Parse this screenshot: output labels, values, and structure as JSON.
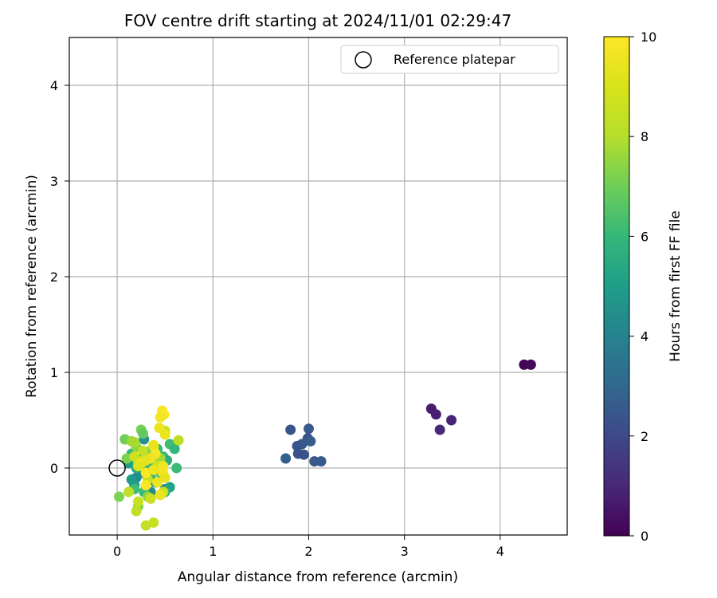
{
  "chart_data": {
    "type": "scatter",
    "title": "FOV centre drift starting at 2024/11/01 02:29:47",
    "xlabel": "Angular distance from reference (arcmin)",
    "ylabel": "Rotation from reference (arcmin)",
    "xlim": [
      -0.5,
      4.7
    ],
    "ylim": [
      -0.7,
      4.5
    ],
    "xticks": [
      0,
      1,
      2,
      3,
      4
    ],
    "yticks": [
      0,
      1,
      2,
      3,
      4
    ],
    "grid": true,
    "legend": {
      "placement": "top-right",
      "entries": [
        {
          "label": "Reference platepar",
          "marker": "open-circle",
          "x": 0,
          "y": 0
        }
      ]
    },
    "colorbar": {
      "label": "Hours from first FF file",
      "range": [
        0,
        10
      ],
      "ticks": [
        0,
        2,
        4,
        6,
        8,
        10
      ],
      "colormap": "viridis"
    },
    "points": [
      {
        "x": 4.25,
        "y": 1.08,
        "h": 0.1
      },
      {
        "x": 4.32,
        "y": 1.08,
        "h": 0.2
      },
      {
        "x": 3.28,
        "y": 0.62,
        "h": 0.7
      },
      {
        "x": 3.33,
        "y": 0.56,
        "h": 0.8
      },
      {
        "x": 3.49,
        "y": 0.5,
        "h": 0.9
      },
      {
        "x": 3.37,
        "y": 0.4,
        "h": 1.0
      },
      {
        "x": 1.81,
        "y": 0.4,
        "h": 2.4
      },
      {
        "x": 2.0,
        "y": 0.41,
        "h": 2.5
      },
      {
        "x": 1.99,
        "y": 0.31,
        "h": 2.3
      },
      {
        "x": 2.02,
        "y": 0.28,
        "h": 2.6
      },
      {
        "x": 1.93,
        "y": 0.25,
        "h": 2.5
      },
      {
        "x": 1.88,
        "y": 0.23,
        "h": 2.4
      },
      {
        "x": 1.89,
        "y": 0.15,
        "h": 2.2
      },
      {
        "x": 1.95,
        "y": 0.14,
        "h": 2.3
      },
      {
        "x": 1.76,
        "y": 0.1,
        "h": 2.7
      },
      {
        "x": 2.06,
        "y": 0.07,
        "h": 2.5
      },
      {
        "x": 2.13,
        "y": 0.07,
        "h": 2.6
      },
      {
        "x": 0.2,
        "y": -0.1,
        "h": 4.2
      },
      {
        "x": 0.25,
        "y": -0.05,
        "h": 4.4
      },
      {
        "x": 0.3,
        "y": -0.2,
        "h": 4.5
      },
      {
        "x": 0.35,
        "y": -0.25,
        "h": 4.3
      },
      {
        "x": 0.4,
        "y": -0.15,
        "h": 4.6
      },
      {
        "x": 0.45,
        "y": -0.28,
        "h": 4.8
      },
      {
        "x": 0.5,
        "y": -0.22,
        "h": 4.4
      },
      {
        "x": 0.15,
        "y": -0.12,
        "h": 4.9
      },
      {
        "x": 0.18,
        "y": -0.18,
        "h": 5.0
      },
      {
        "x": 0.28,
        "y": 0.3,
        "h": 4.6
      },
      {
        "x": 0.32,
        "y": 0.0,
        "h": 4.7
      },
      {
        "x": 0.55,
        "y": -0.2,
        "h": 5.2
      },
      {
        "x": 0.12,
        "y": 0.05,
        "h": 5.0
      },
      {
        "x": 0.38,
        "y": 0.15,
        "h": 5.1
      },
      {
        "x": 0.2,
        "y": 0.0,
        "h": 5.5
      },
      {
        "x": 0.25,
        "y": 0.1,
        "h": 5.7
      },
      {
        "x": 0.3,
        "y": 0.05,
        "h": 5.9
      },
      {
        "x": 0.35,
        "y": -0.1,
        "h": 5.8
      },
      {
        "x": 0.42,
        "y": 0.2,
        "h": 6.0
      },
      {
        "x": 0.48,
        "y": 0.12,
        "h": 6.1
      },
      {
        "x": 0.52,
        "y": 0.08,
        "h": 5.6
      },
      {
        "x": 0.55,
        "y": 0.25,
        "h": 6.2
      },
      {
        "x": 0.6,
        "y": 0.2,
        "h": 5.9
      },
      {
        "x": 0.62,
        "y": 0.0,
        "h": 6.1
      },
      {
        "x": 0.45,
        "y": -0.05,
        "h": 6.3
      },
      {
        "x": 0.15,
        "y": 0.15,
        "h": 6.0
      },
      {
        "x": 0.18,
        "y": -0.22,
        "h": 6.2
      },
      {
        "x": 0.28,
        "y": -0.25,
        "h": 6.1
      },
      {
        "x": 0.5,
        "y": -0.25,
        "h": 5.8
      },
      {
        "x": 0.4,
        "y": 0.05,
        "h": 6.4
      },
      {
        "x": 0.08,
        "y": 0.3,
        "h": 7.0
      },
      {
        "x": 0.25,
        "y": 0.4,
        "h": 7.1
      },
      {
        "x": 0.27,
        "y": 0.36,
        "h": 6.8
      },
      {
        "x": 0.02,
        "y": -0.3,
        "h": 7.2
      },
      {
        "x": 0.22,
        "y": -0.4,
        "h": 7.3
      },
      {
        "x": 0.2,
        "y": 0.22,
        "h": 7.4
      },
      {
        "x": 0.35,
        "y": 0.18,
        "h": 7.0
      },
      {
        "x": 0.1,
        "y": 0.1,
        "h": 7.2
      },
      {
        "x": 0.3,
        "y": 0.12,
        "h": 7.5
      },
      {
        "x": 0.22,
        "y": 0.05,
        "h": 7.6
      },
      {
        "x": 0.4,
        "y": -0.02,
        "h": 7.4
      },
      {
        "x": 0.32,
        "y": -0.3,
        "h": 7.5
      },
      {
        "x": 0.15,
        "y": 0.28,
        "h": 7.6
      },
      {
        "x": 0.18,
        "y": 0.27,
        "h": 7.8
      },
      {
        "x": 0.45,
        "y": 0.1,
        "h": 7.7
      },
      {
        "x": 0.2,
        "y": -0.45,
        "h": 8.3
      },
      {
        "x": 0.3,
        "y": -0.6,
        "h": 8.4
      },
      {
        "x": 0.38,
        "y": -0.57,
        "h": 8.5
      },
      {
        "x": 0.64,
        "y": 0.29,
        "h": 8.2
      },
      {
        "x": 0.5,
        "y": 0.39,
        "h": 8.6
      },
      {
        "x": 0.27,
        "y": 0.18,
        "h": 8.4
      },
      {
        "x": 0.22,
        "y": -0.35,
        "h": 8.5
      },
      {
        "x": 0.12,
        "y": -0.25,
        "h": 8.3
      },
      {
        "x": 0.35,
        "y": -0.32,
        "h": 8.7
      },
      {
        "x": 0.42,
        "y": 0.02,
        "h": 8.6
      },
      {
        "x": 0.25,
        "y": 0.07,
        "h": 8.8
      },
      {
        "x": 0.32,
        "y": -0.12,
        "h": 8.5
      },
      {
        "x": 0.48,
        "y": -0.25,
        "h": 8.6
      },
      {
        "x": 0.18,
        "y": 0.12,
        "h": 8.7
      },
      {
        "x": 0.38,
        "y": 0.22,
        "h": 8.9
      },
      {
        "x": 0.47,
        "y": 0.6,
        "h": 9.8
      },
      {
        "x": 0.49,
        "y": 0.56,
        "h": 9.9
      },
      {
        "x": 0.45,
        "y": 0.53,
        "h": 9.7
      },
      {
        "x": 0.44,
        "y": 0.42,
        "h": 9.6
      },
      {
        "x": 0.5,
        "y": 0.35,
        "h": 9.5
      },
      {
        "x": 0.38,
        "y": 0.24,
        "h": 9.4
      },
      {
        "x": 0.4,
        "y": 0.15,
        "h": 9.8
      },
      {
        "x": 0.35,
        "y": 0.1,
        "h": 9.6
      },
      {
        "x": 0.25,
        "y": 0.05,
        "h": 9.7
      },
      {
        "x": 0.3,
        "y": -0.05,
        "h": 9.9
      },
      {
        "x": 0.38,
        "y": -0.02,
        "h": 9.5
      },
      {
        "x": 0.48,
        "y": -0.05,
        "h": 9.8
      },
      {
        "x": 0.48,
        "y": 0.02,
        "h": 9.7
      },
      {
        "x": 0.42,
        "y": -0.15,
        "h": 9.6
      },
      {
        "x": 0.3,
        "y": -0.18,
        "h": 9.9
      },
      {
        "x": 0.5,
        "y": -0.1,
        "h": 9.4
      },
      {
        "x": 0.45,
        "y": -0.28,
        "h": 9.5
      },
      {
        "x": 0.3,
        "y": 0.08,
        "h": 9.3
      },
      {
        "x": 0.22,
        "y": 0.02,
        "h": 9.2
      }
    ]
  }
}
